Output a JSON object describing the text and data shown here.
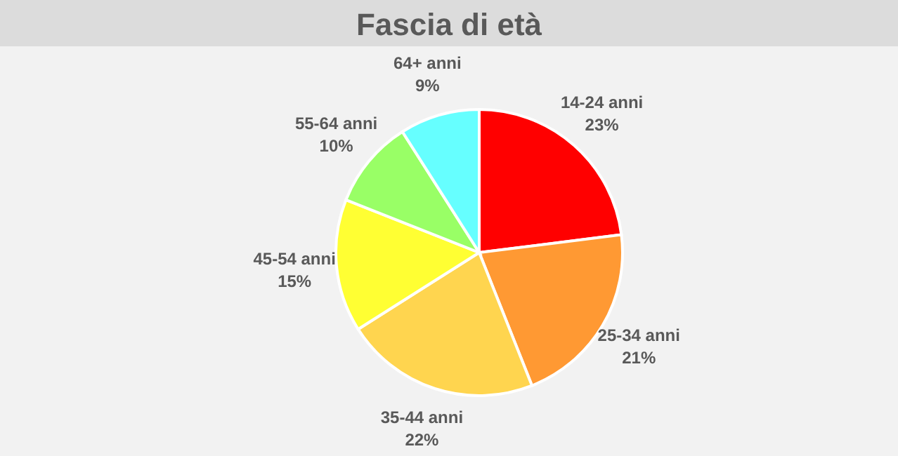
{
  "chart_data": {
    "type": "pie",
    "title": "Fascia di età",
    "categories": [
      "14-24 anni",
      "25-34 anni",
      "35-44 anni",
      "45-54 anni",
      "55-64 anni",
      "64+ anni"
    ],
    "values": [
      23,
      21,
      22,
      15,
      10,
      9
    ],
    "value_labels": [
      "23%",
      "21%",
      "22%",
      "15%",
      "10%",
      "9%"
    ],
    "colors": [
      "#ff0000",
      "#ff9933",
      "#ffd54f",
      "#ffff33",
      "#99ff66",
      "#66ffff"
    ]
  }
}
